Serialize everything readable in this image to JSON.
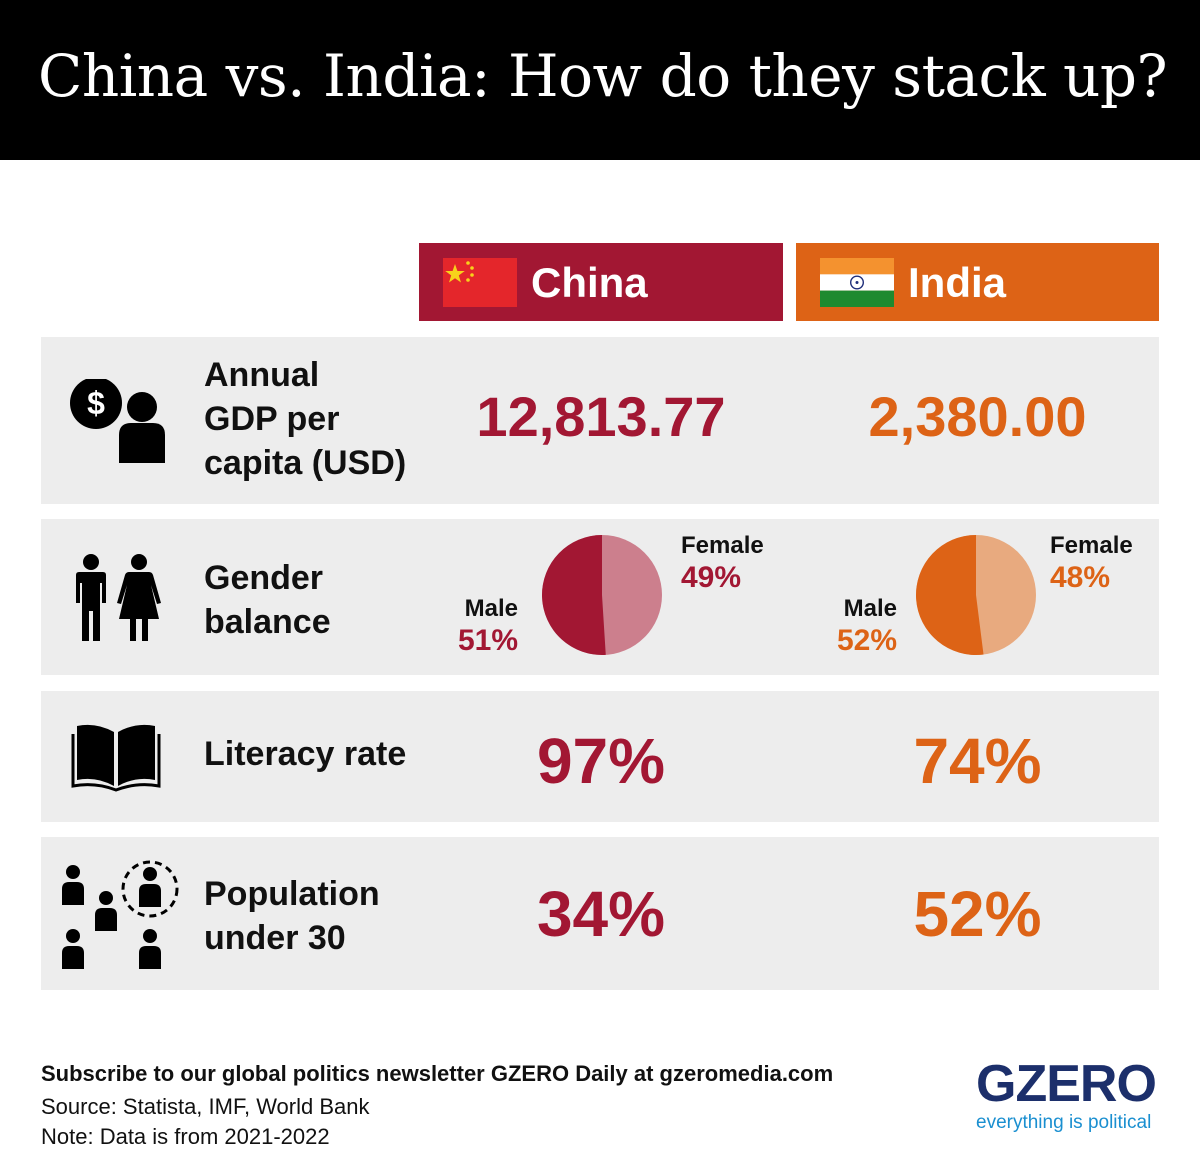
{
  "title": "China vs. India: How do they stack up?",
  "columns": {
    "china": {
      "name": "China",
      "color": "#a21733"
    },
    "india": {
      "name": "India",
      "color": "#dd6316"
    }
  },
  "rows": {
    "gdp": {
      "label_lines": [
        "Annual",
        "GDP per",
        "capita (USD)"
      ],
      "china": "12,813.77",
      "india": "2,380.00",
      "icon": "money-person-icon"
    },
    "gender": {
      "label_lines": [
        "Gender",
        "balance"
      ],
      "icon": "man-woman-icon",
      "china": {
        "female_label": "Female",
        "female_value": "49%",
        "male_label": "Male",
        "male_value": "51%",
        "male_fraction": 0.51
      },
      "india": {
        "female_label": "Female",
        "female_value": "48%",
        "male_label": "Male",
        "male_value": "52%",
        "male_fraction": 0.52
      }
    },
    "literacy": {
      "label": "Literacy rate",
      "china": "97%",
      "india": "74%",
      "icon": "open-book-icon"
    },
    "population": {
      "label_lines": [
        "Population",
        "under 30"
      ],
      "china": "34%",
      "india": "52%",
      "icon": "people-group-icon"
    }
  },
  "footer": {
    "subscribe": "Subscribe to our global politics newsletter GZERO Daily at gzeromedia.com",
    "source": "Source: Statista, IMF, World Bank",
    "note": "Note: Data is from 2021-2022"
  },
  "logo": {
    "word": "GZERO",
    "tagline": "everything is political"
  }
}
